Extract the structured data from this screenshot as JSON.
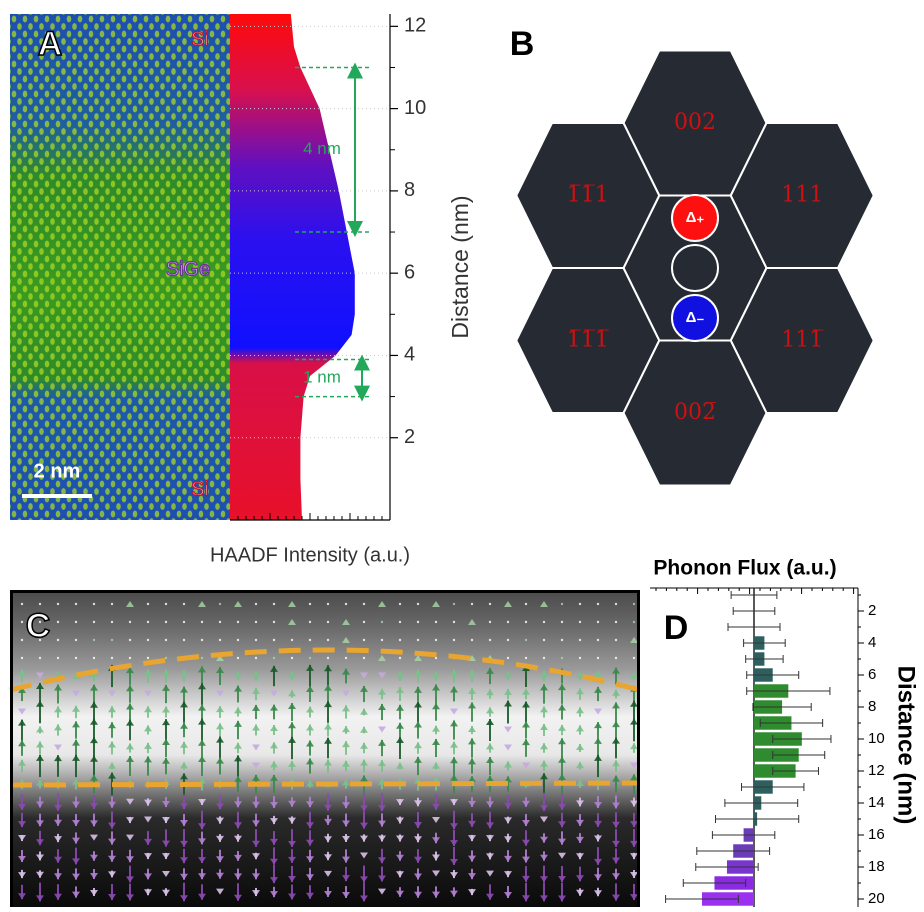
{
  "chart_data": [
    {
      "type": "area",
      "panel": "A",
      "x_label": "HAADF Intensity (a.u.)",
      "y_label": "Distance (nm)",
      "image_labels": [
        "Si",
        "SiGe",
        "Si"
      ],
      "scale_bar": "2 nm",
      "y": [
        0,
        1,
        2,
        3,
        3.5,
        4,
        4.5,
        5,
        6,
        7,
        8,
        9,
        10,
        11,
        11.5,
        12.3
      ],
      "values": [
        45,
        44,
        44,
        46,
        50,
        66,
        76,
        78,
        78,
        73,
        68,
        62,
        56,
        44,
        40,
        38
      ],
      "xlim": [
        0,
        100
      ],
      "ylim": [
        0,
        12.3
      ],
      "yticks": [
        2,
        4,
        6,
        8,
        10,
        12
      ],
      "markers": [
        {
          "label": "4 nm",
          "from": 7,
          "to": 11
        },
        {
          "label": "1 nm",
          "from": 3,
          "to": 3.9
        }
      ],
      "marker_color": "#22a85a"
    },
    {
      "type": "bar",
      "panel": "D",
      "orientation": "horizontal",
      "x_label": "Phonon Flux (a.u.)",
      "y_label": "Distance (nm)",
      "y": [
        1,
        2,
        3,
        4,
        5,
        6,
        7,
        8,
        9,
        10,
        11,
        12,
        13,
        14,
        15,
        16,
        17,
        18,
        19,
        20
      ],
      "values": [
        0,
        0,
        0,
        10,
        10,
        18,
        33,
        27,
        36,
        46,
        43,
        40,
        18,
        7,
        3,
        -10,
        -20,
        -26,
        -38,
        -50
      ],
      "errors": [
        22,
        20,
        25,
        20,
        18,
        25,
        40,
        28,
        30,
        28,
        25,
        22,
        30,
        35,
        40,
        30,
        35,
        30,
        30,
        35
      ],
      "colors": [
        "#2d5f5f",
        "#2d5f5f",
        "#2d5f5f",
        "#2d5f5f",
        "#2d5f5f",
        "#2d5f5f",
        "#2e8b2e",
        "#2e8b2e",
        "#2e8b2e",
        "#2e8b2e",
        "#2e8b2e",
        "#2e8b2e",
        "#2d5f5f",
        "#2d5f5f",
        "#2d5f5f",
        "#6a3cb8",
        "#6a3cb8",
        "#7a35d0",
        "#8a2be2",
        "#9a30f0"
      ],
      "xlim": [
        -100,
        100
      ],
      "ylim": [
        0.7,
        20.5
      ],
      "yticks": [
        2,
        4,
        6,
        8,
        10,
        12,
        14,
        16,
        18,
        20
      ]
    }
  ],
  "diagram": {
    "panel": "B",
    "cells": [
      "002",
      "1̅1̅1",
      "111",
      "1̅1̅1̅",
      "111̅",
      "002̅"
    ],
    "circles": [
      "Δ₊",
      "Δ₋"
    ]
  },
  "image": {
    "panel": "C"
  }
}
